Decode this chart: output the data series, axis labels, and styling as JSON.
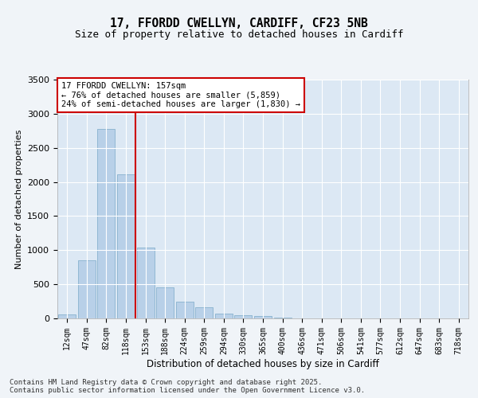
{
  "title_line1": "17, FFORDD CWELLYN, CARDIFF, CF23 5NB",
  "title_line2": "Size of property relative to detached houses in Cardiff",
  "xlabel": "Distribution of detached houses by size in Cardiff",
  "ylabel": "Number of detached properties",
  "categories": [
    "12sqm",
    "47sqm",
    "82sqm",
    "118sqm",
    "153sqm",
    "188sqm",
    "224sqm",
    "259sqm",
    "294sqm",
    "330sqm",
    "365sqm",
    "400sqm",
    "436sqm",
    "471sqm",
    "506sqm",
    "541sqm",
    "577sqm",
    "612sqm",
    "647sqm",
    "683sqm",
    "718sqm"
  ],
  "values": [
    55,
    850,
    2780,
    2110,
    1040,
    455,
    250,
    165,
    70,
    45,
    30,
    15,
    5,
    0,
    0,
    0,
    0,
    0,
    0,
    0,
    0
  ],
  "bar_color": "#b8d0e8",
  "bar_edge_color": "#7aaac8",
  "vline_color": "#cc0000",
  "annotation_text": "17 FFORDD CWELLYN: 157sqm\n← 76% of detached houses are smaller (5,859)\n24% of semi-detached houses are larger (1,830) →",
  "annotation_box_facecolor": "#ffffff",
  "annotation_box_edgecolor": "#cc0000",
  "ylim": [
    0,
    3500
  ],
  "yticks": [
    0,
    500,
    1000,
    1500,
    2000,
    2500,
    3000,
    3500
  ],
  "fig_facecolor": "#f0f4f8",
  "ax_facecolor": "#dce8f4",
  "grid_color": "#ffffff",
  "footer_line1": "Contains HM Land Registry data © Crown copyright and database right 2025.",
  "footer_line2": "Contains public sector information licensed under the Open Government Licence v3.0."
}
